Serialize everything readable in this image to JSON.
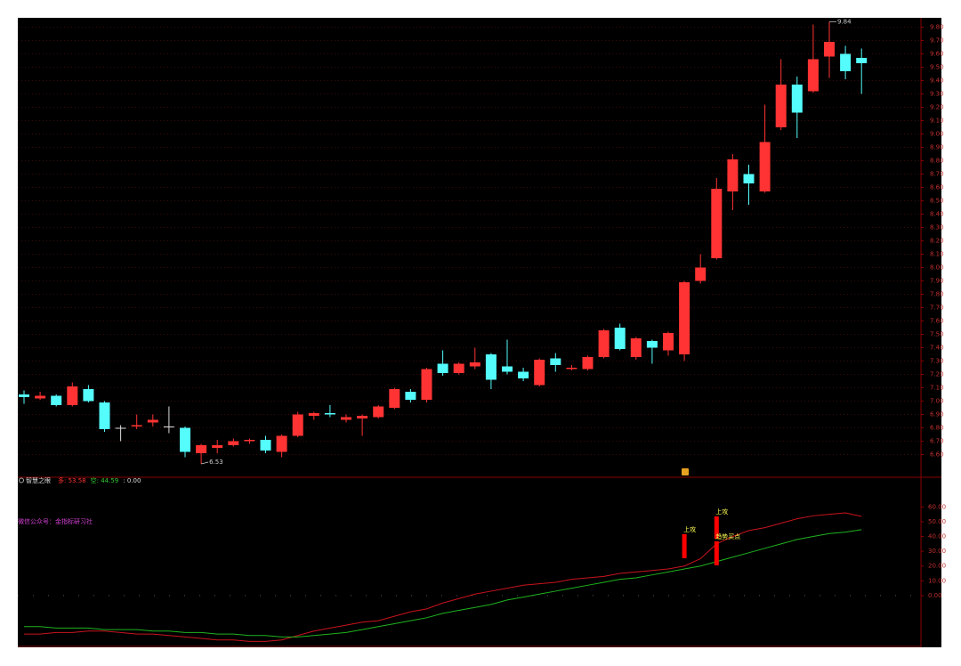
{
  "chart_data": [
    {
      "type": "candlestick",
      "open": [
        7.05,
        7.02,
        7.04,
        6.97,
        7.09,
        6.99,
        6.8,
        6.81,
        6.84,
        6.81,
        6.8,
        6.61,
        6.65,
        6.67,
        6.7,
        6.71,
        6.62,
        6.74,
        6.89,
        6.91,
        6.86,
        6.87,
        6.88,
        6.95,
        7.07,
        7.01,
        7.28,
        7.21,
        7.26,
        7.35,
        7.26,
        7.22,
        7.12,
        7.32,
        7.24,
        7.24,
        7.33,
        7.55,
        7.33,
        7.45,
        7.38,
        7.35,
        7.9,
        8.07,
        8.57,
        8.7,
        8.57,
        9.05,
        9.37,
        9.32,
        9.58,
        9.6,
        9.57
      ],
      "high": [
        7.08,
        7.07,
        7.05,
        7.14,
        7.12,
        7.0,
        6.82,
        6.9,
        6.9,
        6.96,
        6.81,
        6.68,
        6.71,
        6.72,
        6.72,
        6.74,
        6.75,
        6.92,
        6.92,
        6.97,
        6.9,
        6.9,
        6.97,
        7.1,
        7.09,
        7.25,
        7.38,
        7.29,
        7.4,
        7.36,
        7.46,
        7.25,
        7.32,
        7.36,
        7.27,
        7.34,
        7.54,
        7.58,
        7.48,
        7.46,
        7.52,
        7.9,
        8.1,
        8.67,
        8.85,
        8.77,
        9.22,
        9.56,
        9.43,
        9.82,
        9.84,
        9.66,
        9.64
      ],
      "low": [
        6.98,
        7.01,
        6.96,
        6.96,
        6.99,
        6.77,
        6.7,
        6.79,
        6.81,
        6.76,
        6.58,
        6.53,
        6.61,
        6.66,
        6.68,
        6.61,
        6.58,
        6.73,
        6.86,
        6.88,
        6.84,
        6.74,
        6.87,
        6.94,
        6.99,
        6.99,
        7.19,
        7.2,
        7.24,
        7.09,
        7.2,
        7.15,
        7.11,
        7.22,
        7.23,
        7.23,
        7.32,
        7.38,
        7.31,
        7.28,
        7.34,
        7.3,
        7.88,
        8.06,
        8.43,
        8.47,
        8.56,
        9.03,
        8.97,
        9.31,
        9.42,
        9.41,
        9.3
      ],
      "close": [
        7.03,
        7.04,
        6.97,
        7.11,
        7.0,
        6.79,
        6.8,
        6.82,
        6.86,
        6.81,
        6.62,
        6.67,
        6.67,
        6.7,
        6.71,
        6.63,
        6.74,
        6.9,
        6.91,
        6.9,
        6.88,
        6.89,
        6.96,
        7.09,
        7.01,
        7.24,
        7.21,
        7.28,
        7.29,
        7.16,
        7.22,
        7.17,
        7.31,
        7.27,
        7.25,
        7.33,
        7.53,
        7.39,
        7.47,
        7.4,
        7.51,
        7.89,
        8.0,
        8.59,
        8.81,
        8.63,
        8.94,
        9.37,
        9.16,
        9.56,
        9.69,
        9.47,
        9.53
      ],
      "up_color": "#ff3333",
      "down_color": "#54fcfc",
      "flat_color": "#dddddd",
      "min_marker": {
        "value": 6.53,
        "label": "6.53"
      },
      "max_marker": {
        "value": 9.84,
        "label": "9.84"
      },
      "ylim": [
        6.43,
        9.87
      ],
      "yticks": [
        {
          "value": 6.6,
          "label": "6.60"
        },
        {
          "value": 6.7,
          "label": "6.70"
        },
        {
          "value": 6.8,
          "label": "6.80"
        },
        {
          "value": 6.9,
          "label": "6.90"
        },
        {
          "value": 7.0,
          "label": "7.00"
        },
        {
          "value": 7.1,
          "label": "7.10"
        },
        {
          "value": 7.2,
          "label": "7.20"
        },
        {
          "value": 7.3,
          "label": "7.30"
        },
        {
          "value": 7.4,
          "label": "7.40"
        },
        {
          "value": 7.5,
          "label": "7.50"
        },
        {
          "value": 7.6,
          "label": "7.60"
        },
        {
          "value": 7.7,
          "label": "7.70"
        },
        {
          "value": 7.8,
          "label": "7.80"
        },
        {
          "value": 7.9,
          "label": "7.90"
        },
        {
          "value": 8.0,
          "label": "8.00"
        },
        {
          "value": 8.1,
          "label": "8.10"
        },
        {
          "value": 8.2,
          "label": "8.20"
        },
        {
          "value": 8.3,
          "label": "8.30"
        },
        {
          "value": 8.4,
          "label": "8.40"
        },
        {
          "value": 8.5,
          "label": "8.50"
        },
        {
          "value": 8.6,
          "label": "8.60"
        },
        {
          "value": 8.7,
          "label": "8.70"
        },
        {
          "value": 8.8,
          "label": "8.80"
        },
        {
          "value": 8.9,
          "label": "8.90"
        },
        {
          "value": 9.0,
          "label": "9.00"
        },
        {
          "value": 9.1,
          "label": "9.10"
        },
        {
          "value": 9.2,
          "label": "9.20"
        },
        {
          "value": 9.3,
          "label": "9.30"
        },
        {
          "value": 9.4,
          "label": "9.40"
        },
        {
          "value": 9.5,
          "label": "9.50"
        },
        {
          "value": 9.6,
          "label": "9.60"
        },
        {
          "value": 9.7,
          "label": "9.70"
        },
        {
          "value": 9.8,
          "label": "9.80"
        }
      ],
      "grid": true
    },
    {
      "type": "line",
      "title": "智慧之眼",
      "subtitle": "微信公众号：金指标研习社",
      "readouts": [
        {
          "label": "多: 53.58",
          "color": "#ff3333"
        },
        {
          "label": "空: 44.59",
          "color": "#33cc33"
        },
        {
          "label": ": 0.00",
          "color": "#dddddd"
        }
      ],
      "series": [
        {
          "name": "多",
          "color": "#c8141e",
          "values": [
            -26,
            -26,
            -25,
            -25,
            -24,
            -24,
            -25,
            -26,
            -26,
            -27,
            -28,
            -29,
            -30,
            -30,
            -31,
            -31,
            -30,
            -27,
            -24,
            -22,
            -20,
            -18,
            -17,
            -14,
            -11,
            -9,
            -5,
            -2,
            1,
            3,
            5,
            7,
            8,
            9,
            11,
            12,
            13,
            15,
            16,
            17,
            18,
            20,
            25,
            35,
            40,
            44,
            46,
            49,
            52,
            54,
            55,
            56,
            53.58
          ]
        },
        {
          "name": "空",
          "color": "#1fb31f",
          "values": [
            -21,
            -21,
            -22,
            -22,
            -22,
            -23,
            -23,
            -23,
            -24,
            -24,
            -25,
            -25,
            -26,
            -26,
            -27,
            -27,
            -28,
            -28,
            -27,
            -26,
            -25,
            -23,
            -21,
            -19,
            -17,
            -15,
            -12,
            -10,
            -8,
            -6,
            -3,
            -1,
            1,
            3,
            5,
            7,
            9,
            11,
            12,
            14,
            16,
            18,
            20,
            23,
            26,
            29,
            32,
            35,
            38,
            40,
            42,
            43,
            44.59
          ]
        }
      ],
      "signals": [
        {
          "label": "上攻",
          "index": 41,
          "from": 25.3,
          "to": 41.6,
          "color": "#ff0000"
        },
        {
          "label": "上攻",
          "index": 43,
          "from": 38.5,
          "to": 53.6,
          "color": "#ff0000"
        },
        {
          "label": "趋势买点",
          "index": 43,
          "from": 20.5,
          "to": 36.7,
          "color": "#ff0000"
        }
      ],
      "ylim": [
        -35,
        79.5
      ],
      "yticks": [
        {
          "value": 0,
          "label": "0.00"
        },
        {
          "value": 10,
          "label": "10.00"
        },
        {
          "value": 20,
          "label": "20.00"
        },
        {
          "value": 30,
          "label": "30.00"
        },
        {
          "value": 40,
          "label": "40.00"
        },
        {
          "value": 50,
          "label": "50.00"
        },
        {
          "value": 60,
          "label": "60.00"
        }
      ]
    }
  ]
}
